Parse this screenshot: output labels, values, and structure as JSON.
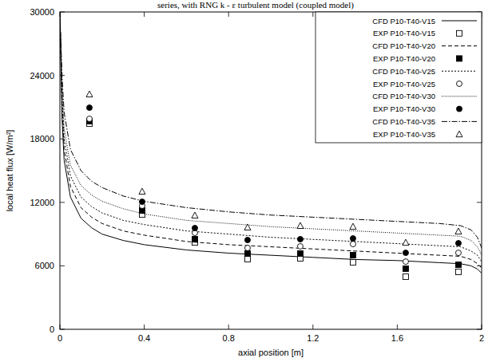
{
  "chart_data": {
    "type": "line",
    "title": "series, with RNG k - ε turbulent model (coupled model)",
    "x_label": "axial position [m]",
    "y_label": "local heat flux [W/m²]",
    "xlim": [
      0,
      2
    ],
    "ylim": [
      0,
      30000
    ],
    "xticks": [
      0,
      0.4,
      0.8,
      1.2,
      1.6,
      2
    ],
    "yticks": [
      0,
      6000,
      12000,
      18000,
      24000,
      30000
    ],
    "grid": false,
    "legend": "top-right",
    "series": [
      {
        "name": "CFD P10-T40-V15",
        "type": "line",
        "color": "#000000",
        "line_style": "solid",
        "x": [
          0,
          0.01,
          0.02,
          0.05,
          0.1,
          0.15,
          0.2,
          0.3,
          0.4,
          0.6,
          0.8,
          1.0,
          1.2,
          1.4,
          1.6,
          1.8,
          1.9,
          1.95,
          1.98,
          2.0
        ],
        "values": [
          30000,
          20000,
          16000,
          12500,
          10500,
          9600,
          9000,
          8400,
          8000,
          7500,
          7200,
          7000,
          6800,
          6600,
          6500,
          6300,
          6200,
          6000,
          5700,
          5300
        ]
      },
      {
        "name": "EXP P10-T40-V15",
        "type": "scatter",
        "color": "#000000",
        "marker": "square-open",
        "x": [
          0.14,
          0.39,
          0.64,
          0.89,
          1.14,
          1.39,
          1.64,
          1.89
        ],
        "values": [
          19440,
          10850,
          8210,
          6630,
          6710,
          6330,
          4970,
          5430
        ]
      },
      {
        "name": "CFD P10-T40-V20",
        "type": "line",
        "color": "#000000",
        "line_style": "dashed",
        "x": [
          0,
          0.01,
          0.02,
          0.05,
          0.1,
          0.15,
          0.2,
          0.3,
          0.4,
          0.6,
          0.8,
          1.0,
          1.2,
          1.4,
          1.6,
          1.8,
          1.9,
          1.95,
          1.98,
          2.0
        ],
        "values": [
          30000,
          21000,
          17000,
          13500,
          11500,
          10600,
          10000,
          9300,
          8900,
          8300,
          8000,
          7800,
          7600,
          7400,
          7200,
          7000,
          6900,
          6600,
          6200,
          5800
        ]
      },
      {
        "name": "EXP P10-T40-V20",
        "type": "scatter",
        "color": "#000000",
        "marker": "square",
        "x": [
          0.14,
          0.39,
          0.64,
          0.89,
          1.14,
          1.39,
          1.64,
          1.89
        ],
        "values": [
          19670,
          11230,
          8520,
          7160,
          7160,
          7010,
          5730,
          6100
        ]
      },
      {
        "name": "CFD P10-T40-V25",
        "type": "line",
        "color": "#000000",
        "line_style": "dotted",
        "x": [
          0,
          0.01,
          0.02,
          0.05,
          0.1,
          0.15,
          0.2,
          0.3,
          0.4,
          0.6,
          0.8,
          1.0,
          1.2,
          1.4,
          1.6,
          1.8,
          1.9,
          1.95,
          1.98,
          2.0
        ],
        "values": [
          30000,
          22000,
          18000,
          14500,
          12500,
          11600,
          11000,
          10300,
          9900,
          9300,
          9000,
          8700,
          8500,
          8300,
          8100,
          7900,
          7800,
          7400,
          7000,
          6400
        ]
      },
      {
        "name": "EXP P10-T40-V25",
        "type": "scatter",
        "color": "#000000",
        "marker": "circle-open",
        "x": [
          0.14,
          0.39,
          0.64,
          0.89,
          1.14,
          1.39,
          1.64,
          1.89
        ],
        "values": [
          19900,
          11680,
          9120,
          7690,
          7840,
          8060,
          6400,
          7230
        ]
      },
      {
        "name": "CFD P10-T40-V30",
        "type": "line",
        "color": "#000000",
        "line_style": "densely-dotted",
        "x": [
          0,
          0.01,
          0.02,
          0.05,
          0.1,
          0.15,
          0.2,
          0.3,
          0.4,
          0.6,
          0.8,
          1.0,
          1.2,
          1.4,
          1.6,
          1.8,
          1.9,
          1.95,
          1.98,
          2.0
        ],
        "values": [
          30000,
          23000,
          19000,
          15500,
          13600,
          12700,
          12100,
          11400,
          10900,
          10300,
          10000,
          9700,
          9500,
          9300,
          9100,
          8900,
          8800,
          8400,
          7800,
          7000
        ]
      },
      {
        "name": "EXP P10-T40-V30",
        "type": "scatter",
        "color": "#000000",
        "marker": "circle",
        "x": [
          0.14,
          0.39,
          0.64,
          0.89,
          1.14,
          1.39,
          1.64,
          1.89
        ],
        "values": [
          20950,
          12060,
          9570,
          8440,
          8520,
          8590,
          7230,
          8140
        ]
      },
      {
        "name": "CFD P10-T40-V35",
        "type": "line",
        "color": "#000000",
        "line_style": "dash-dot",
        "x": [
          0,
          0.01,
          0.02,
          0.05,
          0.1,
          0.15,
          0.2,
          0.3,
          0.4,
          0.6,
          0.8,
          1.0,
          1.2,
          1.4,
          1.6,
          1.8,
          1.9,
          1.95,
          1.98,
          2.0
        ],
        "values": [
          30000,
          24000,
          20500,
          17000,
          15000,
          14000,
          13400,
          12600,
          12100,
          11500,
          11100,
          10800,
          10600,
          10400,
          10200,
          10000,
          9800,
          9400,
          8700,
          7700
        ]
      },
      {
        "name": "EXP P10-T40-V35",
        "type": "scatter",
        "color": "#000000",
        "marker": "triangle-open",
        "x": [
          0.14,
          0.39,
          0.64,
          0.89,
          1.14,
          1.39,
          1.64,
          1.89
        ],
        "values": [
          22230,
          13040,
          10780,
          9650,
          9800,
          9720,
          8210,
          9270
        ]
      }
    ]
  }
}
